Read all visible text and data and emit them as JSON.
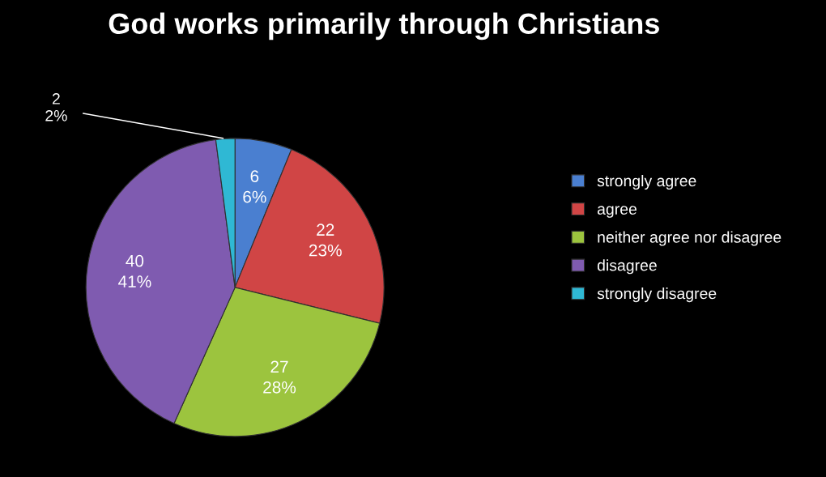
{
  "chart_data": {
    "type": "pie",
    "title": "God works primarily through Christians",
    "categories": [
      "strongly agree",
      "agree",
      "neither agree nor disagree",
      "disagree",
      "strongly disagree"
    ],
    "values": [
      6,
      22,
      27,
      40,
      2
    ],
    "colors": [
      "#4a7fd0",
      "#d04545",
      "#9cc43e",
      "#7f5bb0",
      "#2fb8d4"
    ],
    "value_labels": [
      "6\n6%",
      "22\n23%",
      "27\n28%",
      "40\n41%",
      "2\n2%"
    ],
    "legend": "right"
  }
}
